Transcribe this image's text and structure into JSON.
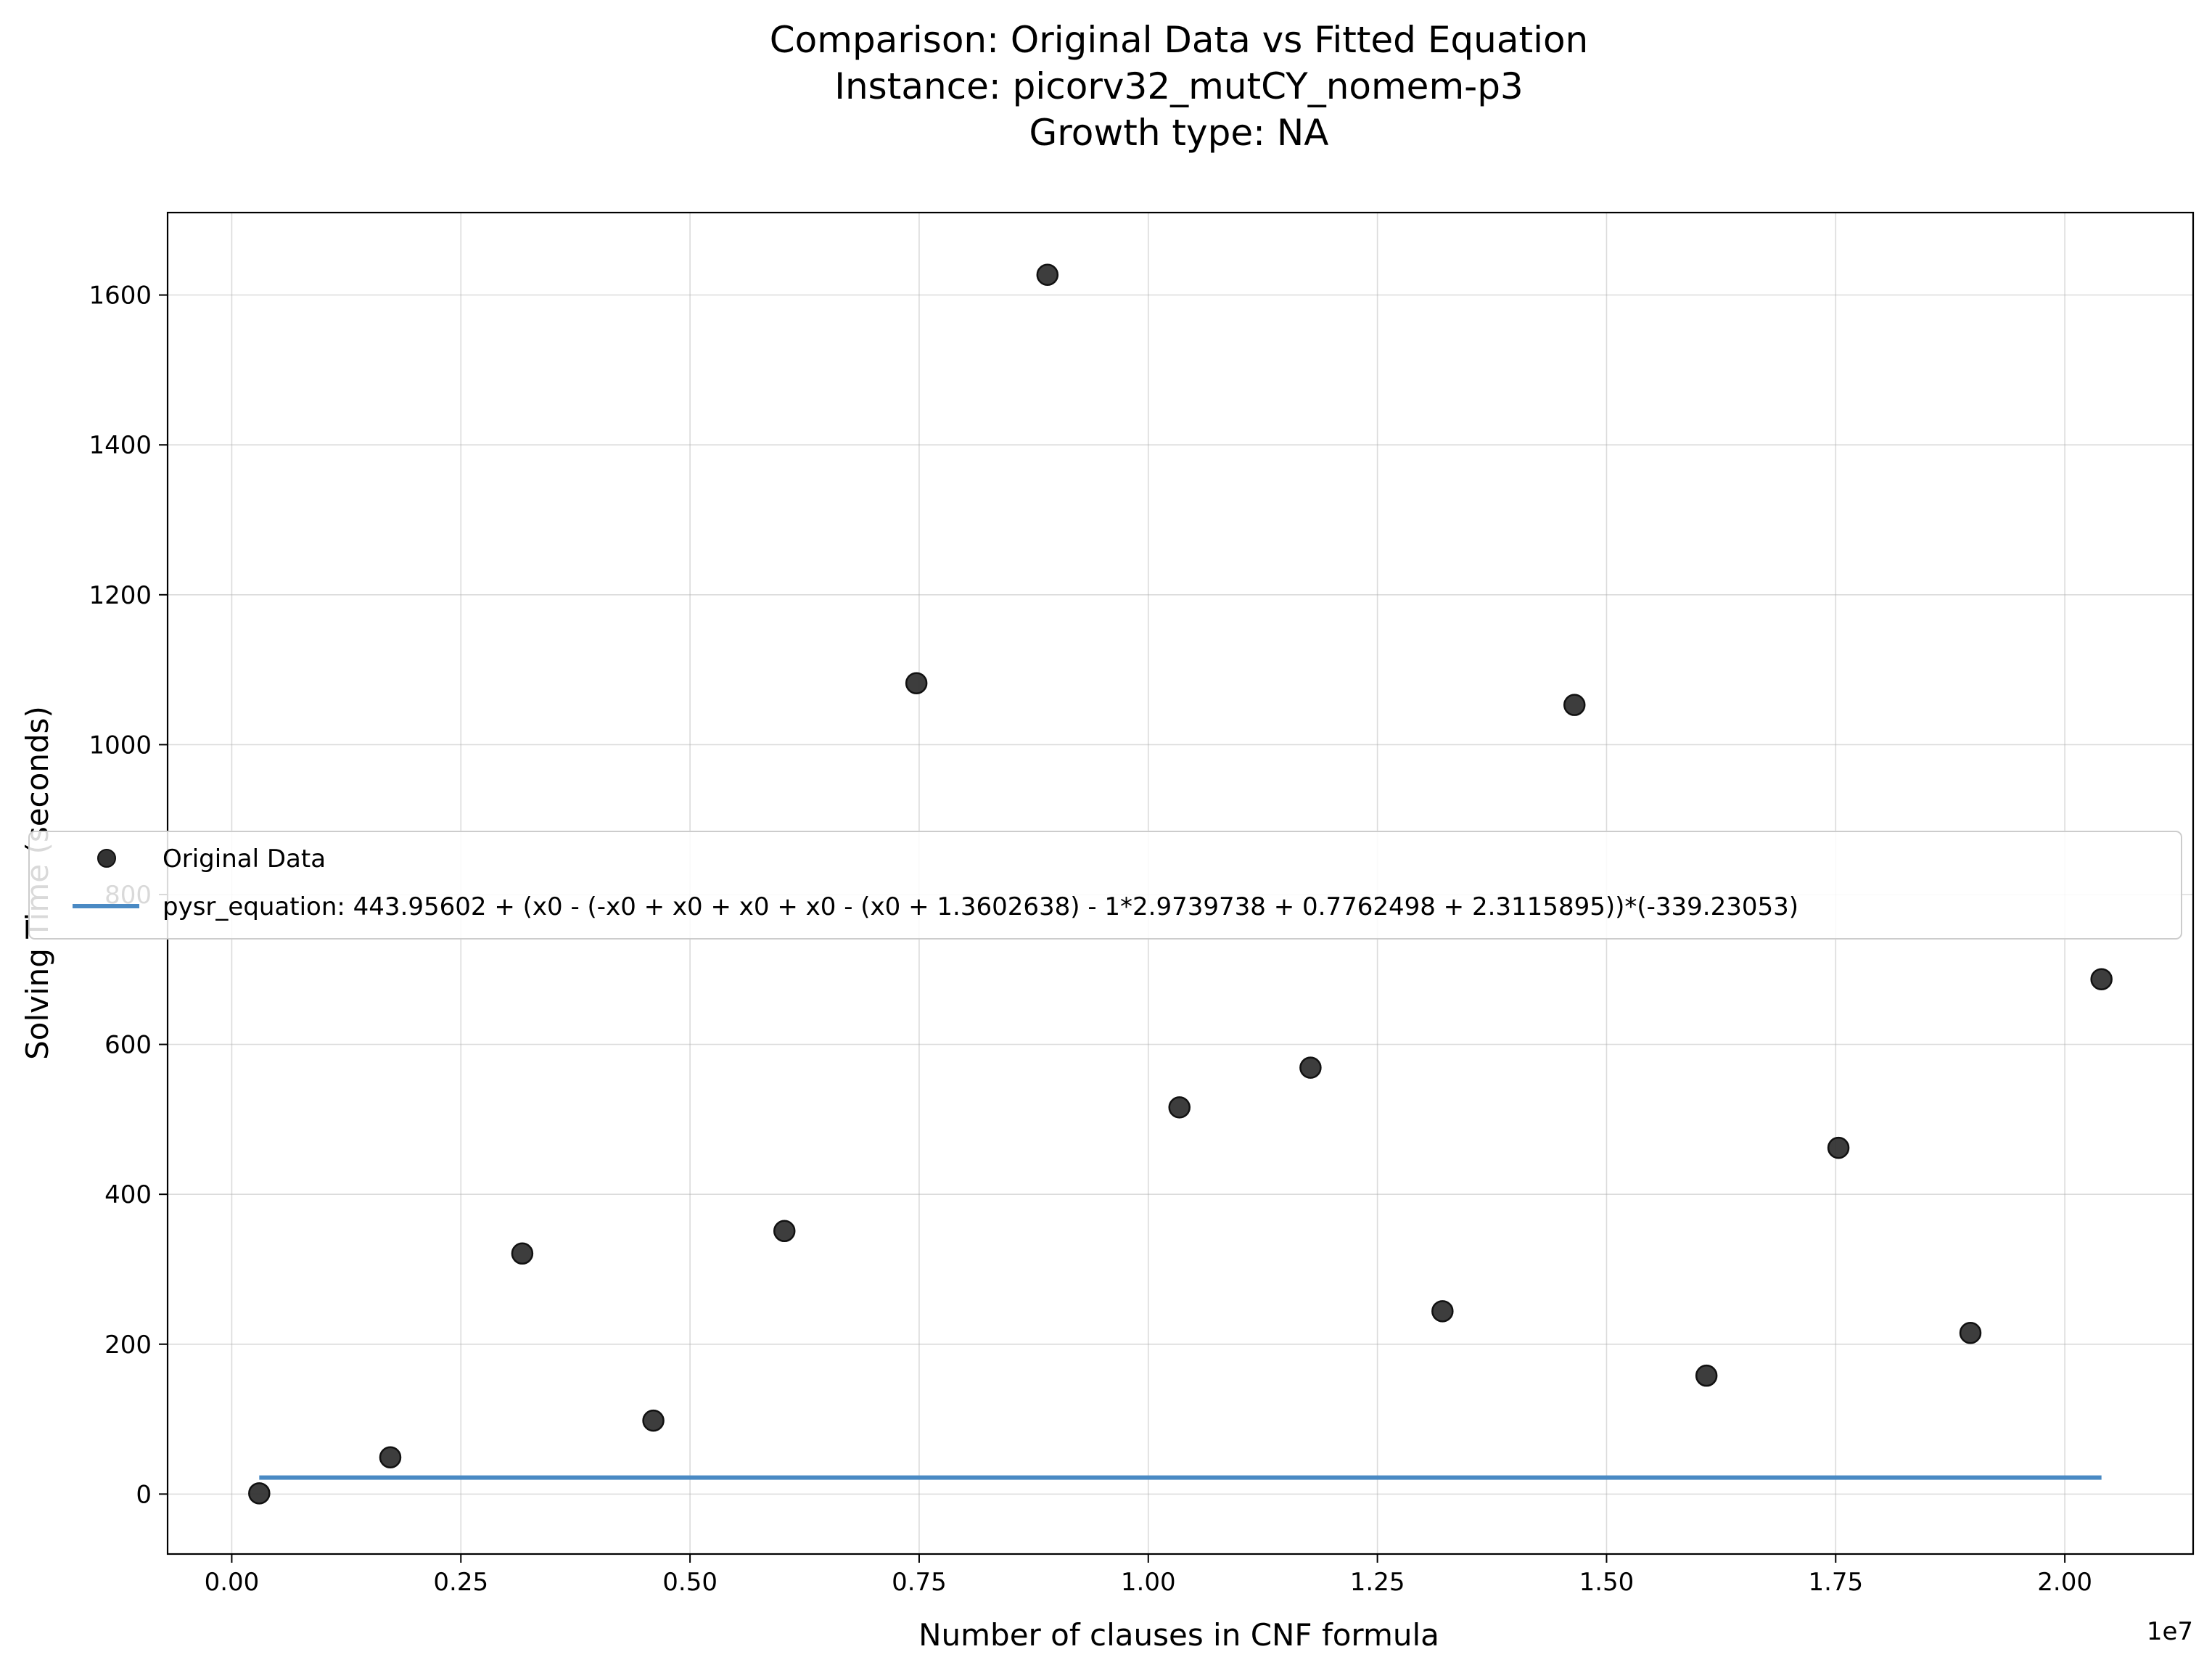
{
  "chart_data": {
    "type": "scatter",
    "title": [
      "Comparison: Original Data vs Fitted Equation",
      "Instance: picorv32_mutCY_nomem-p3",
      "Growth type: NA"
    ],
    "xlabel": "Number of clauses in CNF formula",
    "ylabel": "Solving Time (seconds)",
    "x_offset_label": "1e7",
    "xlim": [
      -0.07,
      2.14
    ],
    "ylim": [
      -80,
      1710
    ],
    "x_ticks": [
      {
        "value": 0.0,
        "label": "0.00"
      },
      {
        "value": 0.25,
        "label": "0.25"
      },
      {
        "value": 0.5,
        "label": "0.50"
      },
      {
        "value": 0.75,
        "label": "0.75"
      },
      {
        "value": 1.0,
        "label": "1.00"
      },
      {
        "value": 1.25,
        "label": "1.25"
      },
      {
        "value": 1.5,
        "label": "1.50"
      },
      {
        "value": 1.75,
        "label": "1.75"
      },
      {
        "value": 2.0,
        "label": "2.00"
      }
    ],
    "y_ticks": [
      {
        "value": 0,
        "label": "0"
      },
      {
        "value": 200,
        "label": "200"
      },
      {
        "value": 400,
        "label": "400"
      },
      {
        "value": 600,
        "label": "600"
      },
      {
        "value": 800,
        "label": "800"
      },
      {
        "value": 1000,
        "label": "1000"
      },
      {
        "value": 1200,
        "label": "1200"
      },
      {
        "value": 1400,
        "label": "1400"
      },
      {
        "value": 1600,
        "label": "1600"
      }
    ],
    "grid": true,
    "legend_placement": "center-left",
    "series": [
      {
        "name": "Original Data",
        "kind": "scatter",
        "color": "#333333",
        "points": [
          {
            "x": 0.03,
            "y": 1
          },
          {
            "x": 0.173,
            "y": 49
          },
          {
            "x": 0.317,
            "y": 321
          },
          {
            "x": 0.46,
            "y": 98
          },
          {
            "x": 0.603,
            "y": 351
          },
          {
            "x": 0.747,
            "y": 1082
          },
          {
            "x": 0.89,
            "y": 1627
          },
          {
            "x": 1.034,
            "y": 516
          },
          {
            "x": 1.177,
            "y": 569
          },
          {
            "x": 1.321,
            "y": 244
          },
          {
            "x": 1.465,
            "y": 1053
          },
          {
            "x": 1.609,
            "y": 158
          },
          {
            "x": 1.753,
            "y": 462
          },
          {
            "x": 1.897,
            "y": 215
          },
          {
            "x": 2.04,
            "y": 687
          }
        ]
      },
      {
        "name": "pysr_equation: 443.95602 + (x0 - (-x0 + x0 + x0 + x0 - (x0 + 1.3602638) - 1*2.9739738 + 0.7762498 + 2.3115895))*(-339.23053)",
        "kind": "line",
        "color": "#4a8ac4",
        "points": [
          {
            "x": 0.03,
            "y": 22
          },
          {
            "x": 2.04,
            "y": 22
          }
        ]
      }
    ]
  }
}
